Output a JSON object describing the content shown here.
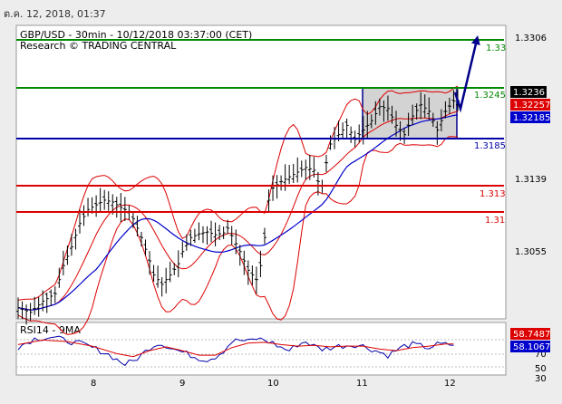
{
  "top_datetime": "ต.ค. 12, 2018, 01:37",
  "chart_data": {
    "type": "line",
    "title": "GBP/USD - 30min - 10/12/2018 03:37:00 (CET)",
    "subtitle": "Research © TRADING CENTRAL",
    "x_ticks": [
      "8",
      "9",
      "10",
      "11",
      "12"
    ],
    "y_ticks": [
      1.3306,
      1.3236,
      1.3139,
      1.3055
    ],
    "ylim": [
      1.3005,
      1.3315
    ],
    "price_series": [
      [
        0,
        1.3015
      ],
      [
        3,
        1.301
      ],
      [
        6,
        1.3022
      ],
      [
        9,
        1.303
      ],
      [
        11,
        1.306
      ],
      [
        13,
        1.308
      ],
      [
        15,
        1.3105
      ],
      [
        17,
        1.312
      ],
      [
        19,
        1.3125
      ],
      [
        21,
        1.313
      ],
      [
        23,
        1.3128
      ],
      [
        25,
        1.3122
      ],
      [
        27,
        1.3118
      ],
      [
        28,
        1.311
      ],
      [
        30,
        1.309
      ],
      [
        32,
        1.3065
      ],
      [
        33,
        1.305
      ],
      [
        35,
        1.304
      ],
      [
        37,
        1.305
      ],
      [
        39,
        1.3062
      ],
      [
        40,
        1.3075
      ],
      [
        42,
        1.309
      ],
      [
        44,
        1.3094
      ],
      [
        46,
        1.3096
      ],
      [
        48,
        1.3093
      ],
      [
        50,
        1.3095
      ],
      [
        51,
        1.31
      ],
      [
        52,
        1.3092
      ],
      [
        54,
        1.3075
      ],
      [
        56,
        1.3055
      ],
      [
        58,
        1.3045
      ],
      [
        59,
        1.306
      ],
      [
        60,
        1.309
      ],
      [
        61,
        1.313
      ],
      [
        62,
        1.3143
      ],
      [
        64,
        1.315
      ],
      [
        66,
        1.3155
      ],
      [
        68,
        1.316
      ],
      [
        70,
        1.3165
      ],
      [
        72,
        1.3162
      ],
      [
        73,
        1.315
      ],
      [
        74,
        1.3145
      ],
      [
        75,
        1.317
      ],
      [
        76,
        1.319
      ],
      [
        78,
        1.32
      ],
      [
        80,
        1.321
      ],
      [
        82,
        1.3195
      ],
      [
        84,
        1.3205
      ],
      [
        86,
        1.3215
      ],
      [
        88,
        1.323
      ],
      [
        90,
        1.3228
      ],
      [
        92,
        1.321
      ],
      [
        94,
        1.32
      ],
      [
        96,
        1.322
      ],
      [
        98,
        1.3232
      ],
      [
        100,
        1.3225
      ],
      [
        102,
        1.3205
      ],
      [
        104,
        1.3225
      ],
      [
        106,
        1.3236
      ],
      [
        107,
        1.3236
      ]
    ],
    "series": [
      {
        "name": "Bollinger Bands",
        "color": "#dd0000"
      },
      {
        "name": "Moving Average",
        "color": "#0000cc"
      }
    ],
    "levels": [
      {
        "label": "1.33",
        "color": "#008800"
      },
      {
        "label": "1.3245",
        "color": "#008800"
      },
      {
        "label": "1.3185",
        "color": "#0000aa"
      },
      {
        "label": "1.313",
        "color": "#dd0000"
      },
      {
        "label": "1.31",
        "color": "#dd0000"
      }
    ],
    "price_tags": [
      {
        "label": "1.3236",
        "bg": "#000000"
      },
      {
        "label": "1.32257",
        "bg": "#dd0000"
      },
      {
        "label": "1.32185",
        "bg": "#0000cc"
      }
    ],
    "forecast": {
      "from_price": 1.3218,
      "to_price": 1.33,
      "color": "#00008b"
    },
    "rsi": {
      "title": "RSI14 - 9MA",
      "y_ticks": [
        "70",
        "50",
        "30"
      ],
      "ylim": [
        20,
        85
      ],
      "tags": [
        {
          "label": "58.7487",
          "bg": "#dd0000"
        },
        {
          "label": "58.1067",
          "bg": "#0000cc"
        }
      ],
      "rsi_series": [
        [
          0,
          55
        ],
        [
          4,
          66
        ],
        [
          8,
          68
        ],
        [
          12,
          63
        ],
        [
          16,
          58
        ],
        [
          19,
          52
        ],
        [
          22,
          45
        ],
        [
          24,
          38
        ],
        [
          26,
          32
        ],
        [
          28,
          36
        ],
        [
          30,
          44
        ],
        [
          32,
          54
        ],
        [
          34,
          60
        ],
        [
          36,
          57
        ],
        [
          38,
          52
        ],
        [
          40,
          48
        ],
        [
          42,
          44
        ],
        [
          44,
          40
        ],
        [
          46,
          38
        ],
        [
          48,
          42
        ],
        [
          50,
          50
        ],
        [
          52,
          62
        ],
        [
          54,
          64
        ],
        [
          56,
          62
        ],
        [
          58,
          66
        ],
        [
          60,
          64
        ],
        [
          62,
          60
        ],
        [
          64,
          54
        ],
        [
          66,
          50
        ],
        [
          68,
          58
        ],
        [
          70,
          62
        ],
        [
          72,
          56
        ],
        [
          74,
          52
        ],
        [
          76,
          54
        ],
        [
          78,
          56
        ],
        [
          80,
          57
        ],
        [
          82,
          58
        ],
        [
          84,
          56
        ],
        [
          86,
          52
        ],
        [
          88,
          48
        ],
        [
          90,
          44
        ],
        [
          92,
          50
        ],
        [
          94,
          56
        ],
        [
          96,
          58
        ],
        [
          98,
          56
        ],
        [
          100,
          54
        ],
        [
          102,
          58
        ],
        [
          104,
          58
        ],
        [
          106,
          58
        ]
      ],
      "ma_series": [
        [
          0,
          58
        ],
        [
          6,
          64
        ],
        [
          12,
          62
        ],
        [
          18,
          56
        ],
        [
          24,
          46
        ],
        [
          28,
          42
        ],
        [
          32,
          50
        ],
        [
          36,
          55
        ],
        [
          40,
          50
        ],
        [
          44,
          44
        ],
        [
          48,
          44
        ],
        [
          52,
          54
        ],
        [
          56,
          60
        ],
        [
          60,
          61
        ],
        [
          64,
          58
        ],
        [
          68,
          56
        ],
        [
          72,
          57
        ],
        [
          76,
          55
        ],
        [
          80,
          56
        ],
        [
          84,
          56
        ],
        [
          88,
          52
        ],
        [
          92,
          50
        ],
        [
          96,
          54
        ],
        [
          100,
          56
        ],
        [
          104,
          58.7
        ],
        [
          106,
          58.7
        ]
      ]
    }
  }
}
